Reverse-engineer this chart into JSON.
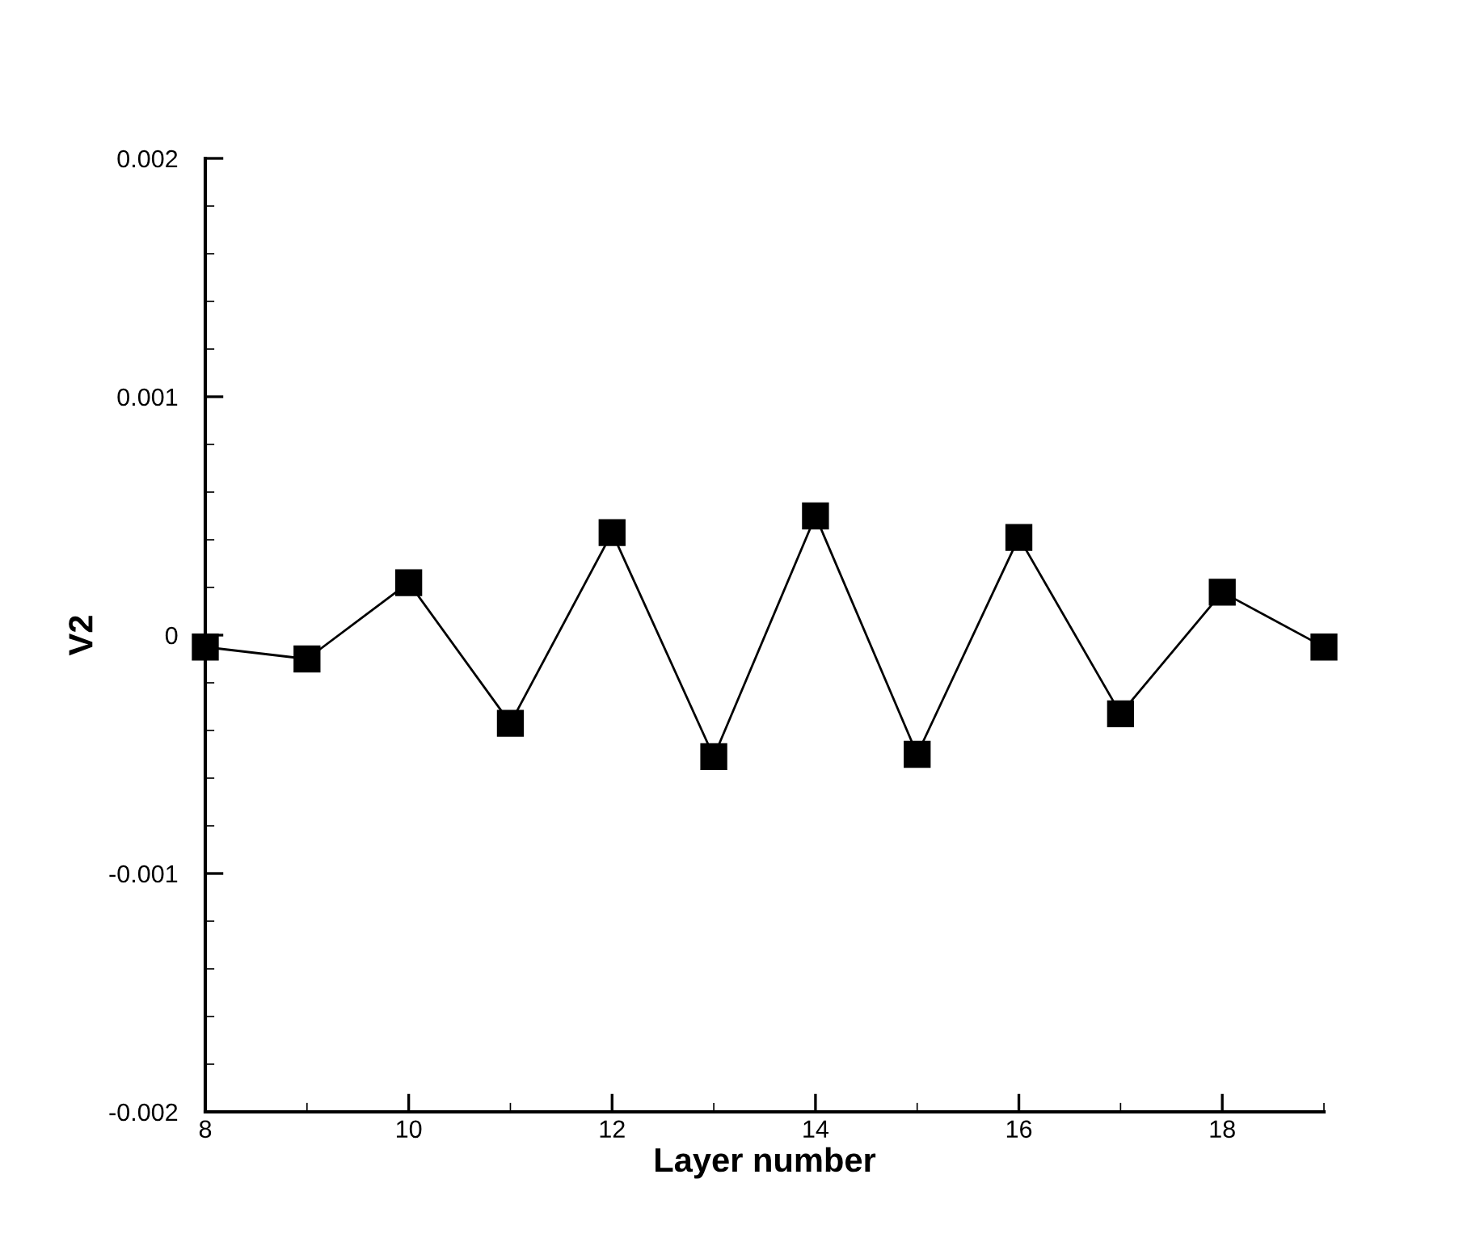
{
  "chart_data": {
    "type": "line",
    "xlabel": "Layer number",
    "ylabel": "V2",
    "x": [
      8,
      9,
      10,
      11,
      12,
      13,
      14,
      15,
      16,
      17,
      18,
      19
    ],
    "series": [
      {
        "color": "#000000",
        "values": [
          -5e-05,
          -0.0001,
          0.00022,
          -0.00037,
          0.00043,
          -0.00051,
          0.0005,
          -0.0005,
          0.00041,
          -0.00033,
          0.00018,
          -5e-05
        ]
      }
    ],
    "marker": "square",
    "line_style": "solid",
    "grid": false,
    "legend": false,
    "xlim": [
      8,
      19
    ],
    "xticks": [
      8,
      10,
      12,
      14,
      16,
      18
    ],
    "ylim": [
      -0.002,
      0.002
    ],
    "yticks": [
      {
        "value": -0.002,
        "label": "-0.002"
      },
      {
        "value": -0.001,
        "label": "-0.001"
      },
      {
        "value": 0,
        "label": "0"
      },
      {
        "value": 0.001,
        "label": "0.001"
      },
      {
        "value": 0.002,
        "label": "0.002"
      }
    ]
  }
}
